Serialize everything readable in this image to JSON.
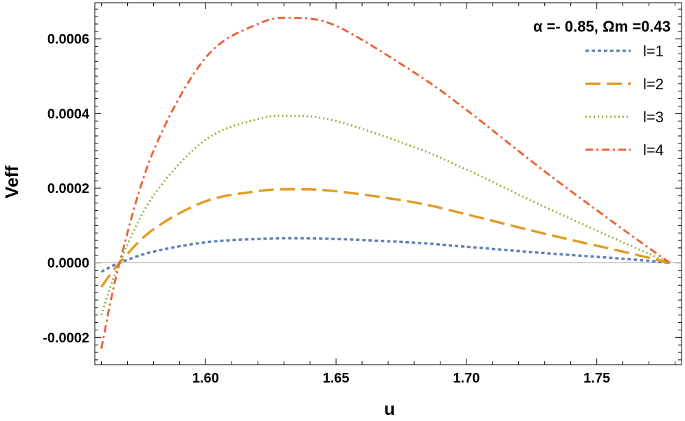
{
  "chart_data": {
    "type": "line",
    "annotation": "α =- 0.85, Ωm =0.43",
    "xlabel": "u",
    "ylabel": "Veff",
    "xlim": [
      1.5575,
      1.7825
    ],
    "ylim": [
      -0.000273,
      0.000697
    ],
    "x_ticks": [
      1.6,
      1.65,
      1.7,
      1.75
    ],
    "x_tick_labels": [
      "1.60",
      "1.65",
      "1.70",
      "1.75"
    ],
    "y_ticks": [
      -0.0002,
      0.0,
      0.0002,
      0.0004,
      0.0006
    ],
    "y_tick_labels": [
      "-0.0002",
      "0.0000",
      "0.0002",
      "0.0004",
      "0.0006"
    ],
    "legend_position": "top-right",
    "series": [
      {
        "name": "l=1",
        "color": "#5E81B5",
        "dash": "dotted",
        "x": [
          1.56,
          1.567,
          1.58,
          1.6,
          1.62,
          1.633,
          1.65,
          1.68,
          1.7,
          1.73,
          1.76,
          1.778
        ],
        "y": [
          -2.4e-05,
          0.0,
          3e-05,
          5.5e-05,
          6.4e-05,
          6.6e-05,
          6.4e-05,
          5.4e-05,
          4.3e-05,
          2.6e-05,
          1.1e-05,
          0.0
        ]
      },
      {
        "name": "l=2",
        "color": "#E19C24",
        "dash": "dashed",
        "x": [
          1.56,
          1.567,
          1.58,
          1.6,
          1.62,
          1.633,
          1.65,
          1.68,
          1.7,
          1.73,
          1.76,
          1.778
        ],
        "y": [
          -6.5e-05,
          0.0,
          9e-05,
          0.000165,
          0.000192,
          0.000197,
          0.000192,
          0.000162,
          0.00013,
          7.8e-05,
          3e-05,
          0.0
        ]
      },
      {
        "name": "l=3",
        "color": "#8FB032",
        "dash": "dotted-fine",
        "x": [
          1.56,
          1.567,
          1.58,
          1.6,
          1.62,
          1.633,
          1.65,
          1.68,
          1.7,
          1.73,
          1.76,
          1.778
        ],
        "y": [
          -0.00014,
          0.0,
          0.00018,
          0.00033,
          0.000385,
          0.000394,
          0.00038,
          0.00031,
          0.00025,
          0.00015,
          5.5e-05,
          0.0
        ]
      },
      {
        "name": "l=4",
        "color": "#EB6235",
        "dash": "dash-dot",
        "x": [
          1.56,
          1.567,
          1.58,
          1.6,
          1.62,
          1.633,
          1.65,
          1.68,
          1.7,
          1.73,
          1.76,
          1.778
        ],
        "y": [
          -0.00023,
          0.0,
          0.0003,
          0.00055,
          0.00064,
          0.000656,
          0.000635,
          0.00051,
          0.00041,
          0.000245,
          9e-05,
          0.0
        ]
      }
    ]
  }
}
